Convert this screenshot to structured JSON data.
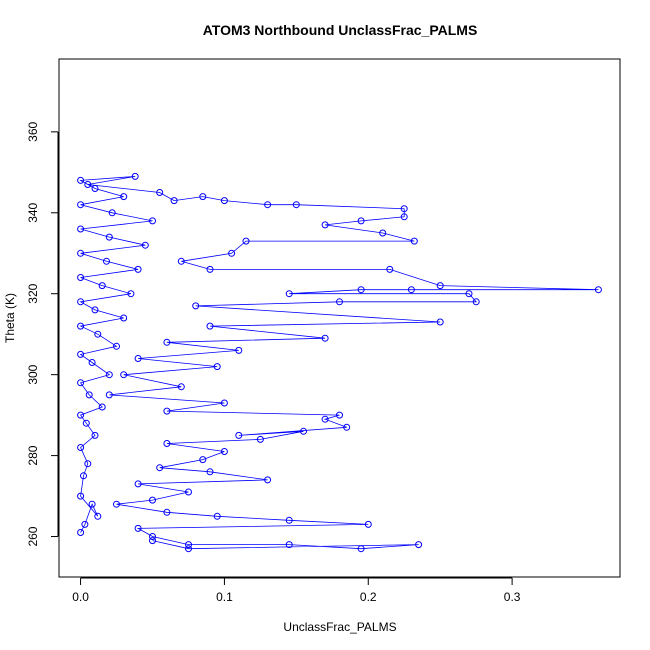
{
  "chart_data": {
    "type": "scatter",
    "title": "ATOM3 Northbound UnclassFrac_PALMS",
    "xlabel": "UnclassFrac_PALMS",
    "ylabel": "Theta (K)",
    "xlim": [
      -0.015,
      0.375
    ],
    "ylim": [
      250,
      378
    ],
    "xticks": [
      0.0,
      0.1,
      0.2,
      0.3
    ],
    "xtick_labels": [
      "0.0",
      "0.1",
      "0.2",
      "0.3"
    ],
    "yticks": [
      260,
      280,
      300,
      320,
      340,
      360
    ],
    "ytick_labels": [
      "260",
      "280",
      "300",
      "320",
      "340",
      "360"
    ],
    "grid": false,
    "legend": "none",
    "series_color": "#0000ff",
    "marker": "open-circle",
    "connected": true,
    "points": [
      [
        0.0,
        261
      ],
      [
        0.003,
        263
      ],
      [
        0.008,
        268
      ],
      [
        0.012,
        265
      ],
      [
        0.0,
        270
      ],
      [
        0.002,
        275
      ],
      [
        0.005,
        278
      ],
      [
        0.0,
        282
      ],
      [
        0.01,
        285
      ],
      [
        0.004,
        288
      ],
      [
        0.0,
        290
      ],
      [
        0.015,
        292
      ],
      [
        0.006,
        295
      ],
      [
        0.0,
        298
      ],
      [
        0.02,
        300
      ],
      [
        0.008,
        303
      ],
      [
        0.0,
        305
      ],
      [
        0.025,
        307
      ],
      [
        0.012,
        310
      ],
      [
        0.0,
        312
      ],
      [
        0.03,
        314
      ],
      [
        0.01,
        316
      ],
      [
        0.0,
        318
      ],
      [
        0.035,
        320
      ],
      [
        0.015,
        322
      ],
      [
        0.0,
        324
      ],
      [
        0.04,
        326
      ],
      [
        0.018,
        328
      ],
      [
        0.0,
        330
      ],
      [
        0.045,
        332
      ],
      [
        0.02,
        334
      ],
      [
        0.0,
        336
      ],
      [
        0.05,
        338
      ],
      [
        0.022,
        340
      ],
      [
        0.0,
        342
      ],
      [
        0.03,
        344
      ],
      [
        0.01,
        346
      ],
      [
        0.0,
        348
      ],
      [
        0.038,
        349
      ],
      [
        0.005,
        347
      ],
      [
        0.055,
        345
      ],
      [
        0.065,
        343
      ],
      [
        0.085,
        344
      ],
      [
        0.1,
        343
      ],
      [
        0.13,
        342
      ],
      [
        0.15,
        342
      ],
      [
        0.225,
        341
      ],
      [
        0.225,
        339
      ],
      [
        0.195,
        338
      ],
      [
        0.17,
        337
      ],
      [
        0.21,
        335
      ],
      [
        0.232,
        333
      ],
      [
        0.115,
        333
      ],
      [
        0.105,
        330
      ],
      [
        0.07,
        328
      ],
      [
        0.09,
        326
      ],
      [
        0.215,
        326
      ],
      [
        0.25,
        322
      ],
      [
        0.36,
        321
      ],
      [
        0.23,
        321
      ],
      [
        0.195,
        321
      ],
      [
        0.145,
        320
      ],
      [
        0.27,
        320
      ],
      [
        0.275,
        318
      ],
      [
        0.18,
        318
      ],
      [
        0.08,
        317
      ],
      [
        0.25,
        313
      ],
      [
        0.09,
        312
      ],
      [
        0.17,
        309
      ],
      [
        0.06,
        308
      ],
      [
        0.11,
        306
      ],
      [
        0.04,
        304
      ],
      [
        0.095,
        302
      ],
      [
        0.03,
        300
      ],
      [
        0.07,
        297
      ],
      [
        0.02,
        295
      ],
      [
        0.1,
        293
      ],
      [
        0.06,
        291
      ],
      [
        0.18,
        290
      ],
      [
        0.17,
        289
      ],
      [
        0.185,
        287
      ],
      [
        0.11,
        285
      ],
      [
        0.155,
        286
      ],
      [
        0.125,
        284
      ],
      [
        0.06,
        283
      ],
      [
        0.1,
        281
      ],
      [
        0.085,
        279
      ],
      [
        0.055,
        277
      ],
      [
        0.09,
        276
      ],
      [
        0.13,
        274
      ],
      [
        0.04,
        273
      ],
      [
        0.075,
        271
      ],
      [
        0.05,
        269
      ],
      [
        0.025,
        268
      ],
      [
        0.06,
        266
      ],
      [
        0.095,
        265
      ],
      [
        0.145,
        264
      ],
      [
        0.2,
        263
      ],
      [
        0.04,
        262
      ],
      [
        0.05,
        260
      ],
      [
        0.075,
        258
      ],
      [
        0.145,
        258
      ],
      [
        0.195,
        257
      ],
      [
        0.235,
        258
      ],
      [
        0.075,
        257
      ],
      [
        0.05,
        259
      ]
    ]
  }
}
